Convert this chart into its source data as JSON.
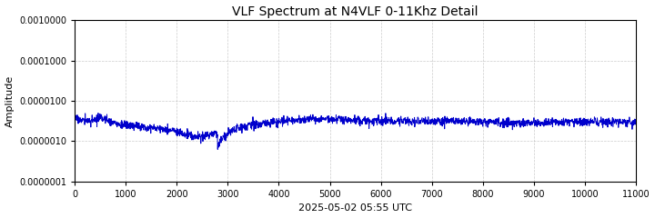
{
  "title": "VLF Spectrum at N4VLF 0-11Khz Detail",
  "xlabel": "2025-05-02 05:55 UTC",
  "ylabel": "Amplitude",
  "xmin": 0,
  "xmax": 11000,
  "ymin": 1e-07,
  "ymax": 0.001,
  "line_color": "#0000cc",
  "line_width": 0.7,
  "background_color": "#ffffff",
  "grid_color": "#aaaaaa",
  "xticks": [
    0,
    1000,
    2000,
    3000,
    4000,
    5000,
    6000,
    7000,
    8000,
    9000,
    10000,
    11000
  ],
  "yticks": [
    1e-07,
    1e-06,
    1e-05,
    0.0001,
    0.001
  ],
  "ytick_labels": [
    "0.0000001",
    "0.0000010",
    "0.0000100",
    "0.0001000",
    "0.0010000"
  ],
  "title_fontsize": 10,
  "label_fontsize": 8,
  "tick_fontsize": 7
}
